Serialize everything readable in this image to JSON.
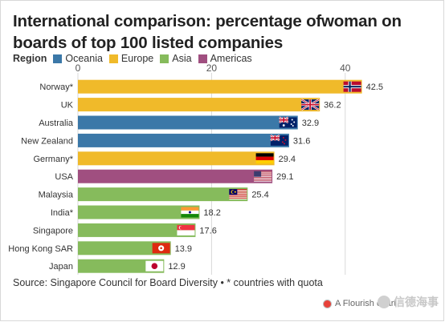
{
  "chart_data": {
    "type": "bar",
    "orientation": "horizontal",
    "title": "International comparison: percentage ofwoman on boards of top 100 listed companies",
    "legend": {
      "title": "Region",
      "placement": "top-left",
      "items": [
        {
          "name": "Oceania",
          "color": "#3b78a8"
        },
        {
          "name": "Europe",
          "color": "#f0ba2a"
        },
        {
          "name": "Asia",
          "color": "#86bb5c"
        },
        {
          "name": "Americas",
          "color": "#a04f80"
        }
      ]
    },
    "xlim": [
      0,
      47
    ],
    "xticks": [
      0,
      20,
      40
    ],
    "grid": true,
    "categories": [
      "Norway*",
      "UK",
      "Australia",
      "New Zealand",
      "Germany*",
      "USA",
      "Malaysia",
      "India*",
      "Singapore",
      "Hong Kong SAR",
      "Japan"
    ],
    "values": [
      42.5,
      36.2,
      32.9,
      31.6,
      29.4,
      29.1,
      25.4,
      18.2,
      17.6,
      13.9,
      12.9
    ],
    "regions": [
      "Europe",
      "Europe",
      "Oceania",
      "Oceania",
      "Europe",
      "Americas",
      "Asia",
      "Asia",
      "Asia",
      "Asia",
      "Asia"
    ],
    "flag_icons": [
      "norway-flag-icon",
      "uk-flag-icon",
      "australia-flag-icon",
      "new-zealand-flag-icon",
      "germany-flag-icon",
      "usa-flag-icon",
      "malaysia-flag-icon",
      "india-flag-icon",
      "singapore-flag-icon",
      "hong-kong-flag-icon",
      "japan-flag-icon"
    ]
  },
  "source_text": "Source: Singapore Council for Board Diversity • * countries with quota",
  "credit_text": "A Flourish chart",
  "watermark_text": "信德海事"
}
